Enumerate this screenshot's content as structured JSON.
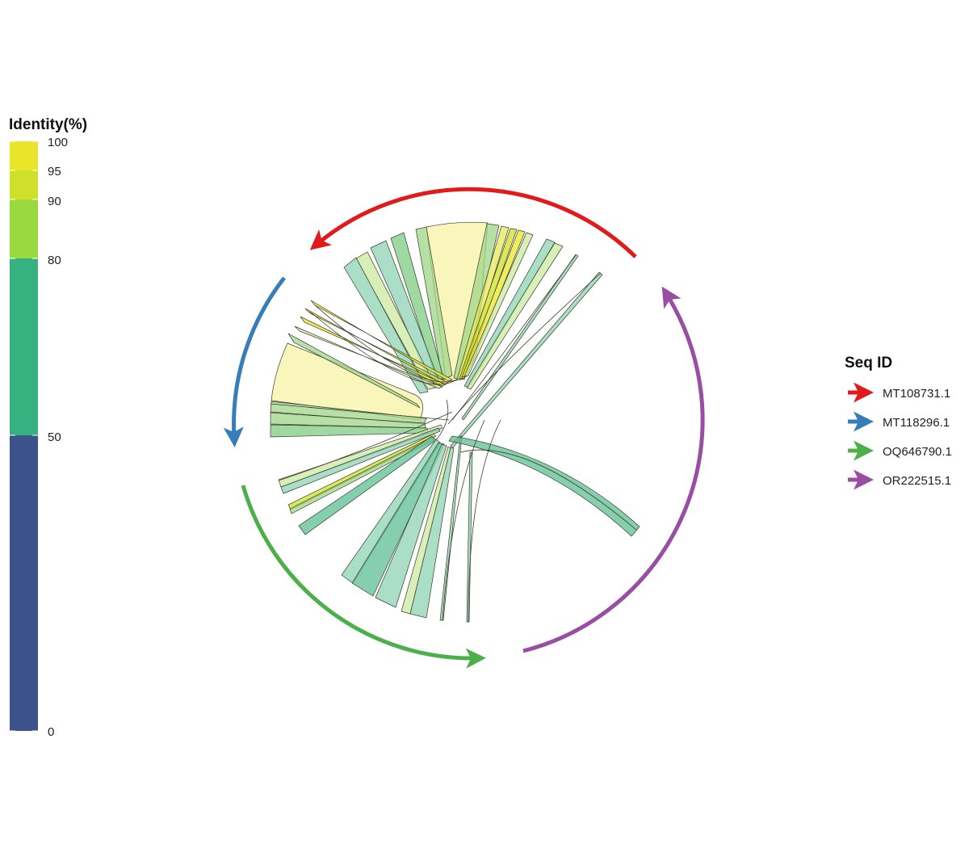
{
  "identity_legend": {
    "title": "Identity(%)",
    "ticks": [
      "100",
      "95",
      "90",
      "80",
      "50",
      "0"
    ],
    "bands": [
      {
        "from": 95,
        "to": 100,
        "color": "#e9e62a"
      },
      {
        "from": 90,
        "to": 95,
        "color": "#cfe02a"
      },
      {
        "from": 80,
        "to": 90,
        "color": "#9ad93d"
      },
      {
        "from": 50,
        "to": 80,
        "color": "#35b27f"
      },
      {
        "from": 0,
        "to": 50,
        "color": "#3b528b"
      }
    ]
  },
  "seq_legend": {
    "title": "Seq ID",
    "items": [
      {
        "label": "MT108731.1",
        "color": "#e31a1c"
      },
      {
        "label": "MT118296.1",
        "color": "#377eb8"
      },
      {
        "label": "OQ646790.1",
        "color": "#4daf4a"
      },
      {
        "label": "OR222515.1",
        "color": "#984ea3"
      }
    ]
  },
  "colors": {
    "link_yellow": "#f7f3a6",
    "link_lightgreen": "#cbe9a0",
    "link_green": "#9fd688",
    "link_teal": "#8fd3b4",
    "link_teal_dark": "#5cbf93",
    "link_stroke": "#3a3a2a"
  }
}
